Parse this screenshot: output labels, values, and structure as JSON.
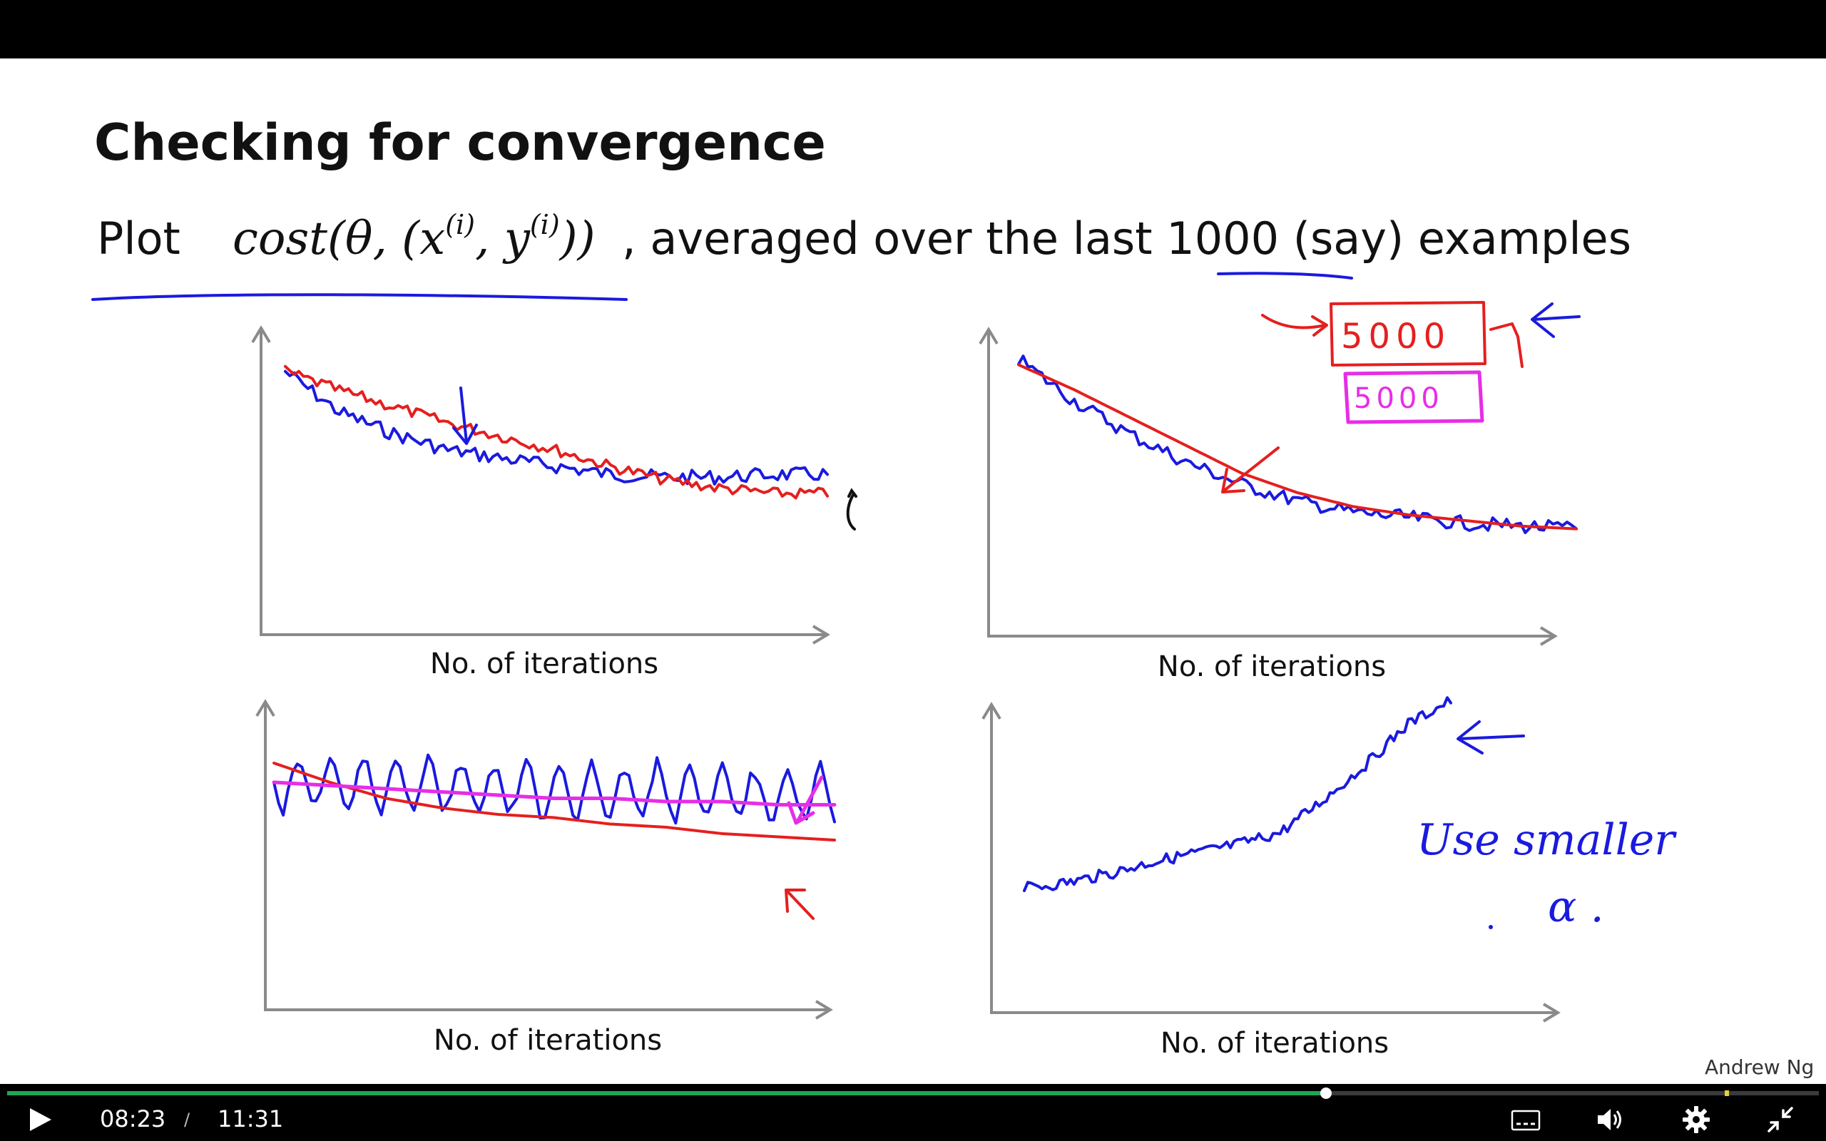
{
  "slide": {
    "title": "Checking for convergence",
    "line_plot": "Plot",
    "line_formula": "cost(θ, (x(i), y(i)))",
    "line_formula_cost": "cost(θ, (x",
    "line_formula_sup1": "(i)",
    "line_formula_mid": ", y",
    "line_formula_sup2": "(i)",
    "line_formula_end": "))",
    "line_rest_1": ", averaged over the last ",
    "line_number": "1000",
    "line_rest_2": " (say) examples",
    "credit": "Andrew Ng",
    "x_axis_label": "No. of iterations",
    "annotation_5000_red": "5000",
    "annotation_5000_magenta": "5000",
    "annotation_use_smaller": "Use  smaller",
    "annotation_alpha": "α ."
  },
  "chart_data": [
    {
      "type": "line",
      "xlabel": "No. of iterations",
      "ylabel": "",
      "series": [
        {
          "color": "#1a1adf",
          "trend": [
            0.95,
            0.8,
            0.72,
            0.66,
            0.63,
            0.6,
            0.57,
            0.56,
            0.56,
            0.57,
            0.57
          ]
        },
        {
          "color": "#e51f1f",
          "trend": [
            0.95,
            0.88,
            0.82,
            0.76,
            0.71,
            0.66,
            0.6,
            0.55,
            0.52,
            0.5,
            0.5
          ]
        }
      ]
    },
    {
      "type": "line",
      "xlabel": "No. of iterations",
      "ylabel": "",
      "series": [
        {
          "color": "#1a1adf",
          "trend": [
            0.97,
            0.82,
            0.7,
            0.6,
            0.52,
            0.46,
            0.42,
            0.4,
            0.38,
            0.37,
            0.36
          ]
        },
        {
          "color": "#e51f1f",
          "trend": [
            0.95,
            0.86,
            0.76,
            0.66,
            0.56,
            0.49,
            0.44,
            0.41,
            0.39,
            0.37,
            0.36
          ]
        }
      ]
    },
    {
      "type": "line",
      "xlabel": "No. of iterations",
      "ylabel": "",
      "series": [
        {
          "color": "#1a1adf",
          "trend": [
            0.7,
            0.7,
            0.69,
            0.69,
            0.68,
            0.68,
            0.67,
            0.67,
            0.66,
            0.66,
            0.66
          ]
        },
        {
          "color": "#e51f1f",
          "trend": [
            0.76,
            0.7,
            0.65,
            0.62,
            0.6,
            0.59,
            0.57,
            0.56,
            0.54,
            0.53,
            0.52
          ]
        },
        {
          "color": "#e62ee6",
          "trend": [
            0.7,
            0.69,
            0.68,
            0.67,
            0.66,
            0.65,
            0.65,
            0.64,
            0.64,
            0.63,
            0.63
          ]
        }
      ]
    },
    {
      "type": "line",
      "xlabel": "No. of iterations",
      "ylabel": "",
      "series": [
        {
          "color": "#1a1adf",
          "trend": [
            0.36,
            0.38,
            0.41,
            0.45,
            0.48,
            0.51,
            0.55,
            0.66,
            0.78,
            0.92,
            1.0
          ]
        }
      ]
    }
  ],
  "player": {
    "current_time": "08:23",
    "separator": "/",
    "total_time": "11:31",
    "progress_fraction": 0.7278,
    "marker_fraction": 0.948,
    "colors": {
      "progress": "#1ea656",
      "marker": "#e8d23a"
    },
    "icons": [
      "play-icon",
      "captions-icon",
      "volume-icon",
      "settings-gear-icon",
      "exit-fullscreen-icon"
    ]
  }
}
